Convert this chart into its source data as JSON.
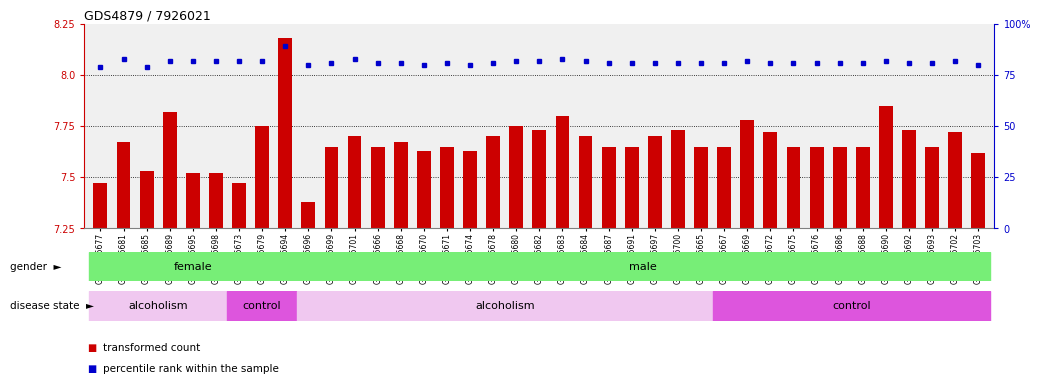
{
  "title": "GDS4879 / 7926021",
  "samples": [
    "GSM1085677",
    "GSM1085681",
    "GSM1085685",
    "GSM1085689",
    "GSM1085695",
    "GSM1085698",
    "GSM1085673",
    "GSM1085679",
    "GSM1085694",
    "GSM1085696",
    "GSM1085699",
    "GSM1085701",
    "GSM1085666",
    "GSM1085668",
    "GSM1085670",
    "GSM1085671",
    "GSM1085674",
    "GSM1085678",
    "GSM1085680",
    "GSM1085682",
    "GSM1085683",
    "GSM1085684",
    "GSM1085687",
    "GSM1085691",
    "GSM1085697",
    "GSM1085700",
    "GSM1085665",
    "GSM1085667",
    "GSM1085669",
    "GSM1085672",
    "GSM1085675",
    "GSM1085676",
    "GSM1085686",
    "GSM1085688",
    "GSM1085690",
    "GSM1085692",
    "GSM1085693",
    "GSM1085702",
    "GSM1085703"
  ],
  "bar_values": [
    7.47,
    7.67,
    7.53,
    7.82,
    7.52,
    7.52,
    7.47,
    7.75,
    8.18,
    7.38,
    7.65,
    7.7,
    7.65,
    7.67,
    7.63,
    7.65,
    7.63,
    7.7,
    7.75,
    7.73,
    7.8,
    7.7,
    7.65,
    7.65,
    7.7,
    7.73,
    7.65,
    7.65,
    7.78,
    7.72,
    7.65,
    7.65,
    7.65,
    7.65,
    7.85,
    7.73,
    7.65,
    7.72,
    7.62
  ],
  "percentile_values": [
    8.04,
    8.08,
    8.04,
    8.07,
    8.07,
    8.07,
    8.07,
    8.07,
    8.14,
    8.05,
    8.06,
    8.08,
    8.06,
    8.06,
    8.05,
    8.06,
    8.05,
    8.06,
    8.07,
    8.07,
    8.08,
    8.07,
    8.06,
    8.06,
    8.06,
    8.06,
    8.06,
    8.06,
    8.07,
    8.06,
    8.06,
    8.06,
    8.06,
    8.06,
    8.07,
    8.06,
    8.06,
    8.07,
    8.05
  ],
  "ymin": 7.25,
  "ymax": 8.25,
  "yticks_left": [
    7.25,
    7.5,
    7.75,
    8.0,
    8.25
  ],
  "yticks_right": [
    0,
    25,
    50,
    75,
    100
  ],
  "bar_color": "#cc0000",
  "dot_color": "#0000cc",
  "grid_values": [
    7.5,
    7.75,
    8.0
  ],
  "bar_width": 0.6,
  "title_fontsize": 9,
  "tick_fontsize": 7,
  "xtick_fontsize": 5.5,
  "gender_color": "#77ee77",
  "alcoholism_color": "#f0c8f0",
  "control_color": "#dd55dd",
  "bg_color": "#f0f0f0"
}
